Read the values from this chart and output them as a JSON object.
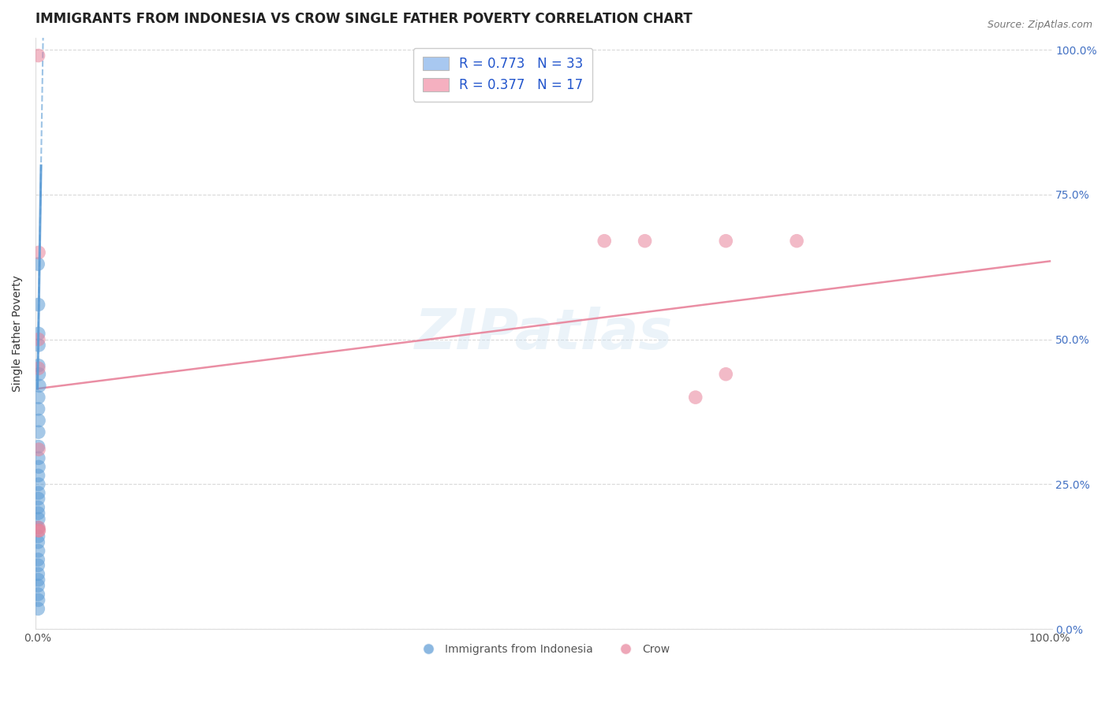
{
  "title": "IMMIGRANTS FROM INDONESIA VS CROW SINGLE FATHER POVERTY CORRELATION CHART",
  "source": "Source: ZipAtlas.com",
  "ylabel": "Single Father Poverty",
  "xlim": [
    0,
    1.0
  ],
  "ylim": [
    0,
    1.0
  ],
  "blue_color": "#5b9bd5",
  "pink_color": "#e8829a",
  "background_color": "#ffffff",
  "watermark": "ZIPatlas",
  "blue_scatter_x": [
    0.0005,
    0.0008,
    0.001,
    0.0012,
    0.001,
    0.0015,
    0.0018,
    0.001,
    0.0008,
    0.0012,
    0.001,
    0.0008,
    0.001,
    0.0012,
    0.0008,
    0.001,
    0.001,
    0.0008,
    0.0006,
    0.0008,
    0.001,
    0.0006,
    0.0008,
    0.0006,
    0.0008,
    0.0006,
    0.0006,
    0.0006,
    0.0008,
    0.0006,
    0.0006,
    0.0008,
    0.0006
  ],
  "blue_scatter_y": [
    0.63,
    0.56,
    0.51,
    0.49,
    0.455,
    0.44,
    0.42,
    0.4,
    0.38,
    0.36,
    0.34,
    0.315,
    0.295,
    0.28,
    0.265,
    0.25,
    0.235,
    0.225,
    0.21,
    0.2,
    0.19,
    0.175,
    0.16,
    0.15,
    0.135,
    0.12,
    0.11,
    0.095,
    0.085,
    0.075,
    0.06,
    0.05,
    0.035
  ],
  "pink_scatter_x": [
    0.0008,
    0.0012,
    0.001,
    0.0012,
    0.001,
    0.0015,
    0.0012,
    0.001,
    0.56,
    0.6,
    0.68,
    0.75,
    0.68,
    0.65
  ],
  "pink_scatter_y": [
    0.99,
    0.65,
    0.5,
    0.31,
    0.45,
    0.17,
    0.175,
    0.17,
    0.67,
    0.67,
    0.67,
    0.67,
    0.44,
    0.4
  ],
  "pink_line_x0": 0.0,
  "pink_line_x1": 1.0,
  "pink_line_y0": 0.415,
  "pink_line_y1": 0.635,
  "blue_line_y_at_x0": 0.415,
  "blue_line_slope": 110.0,
  "title_fontsize": 12,
  "axis_fontsize": 10
}
